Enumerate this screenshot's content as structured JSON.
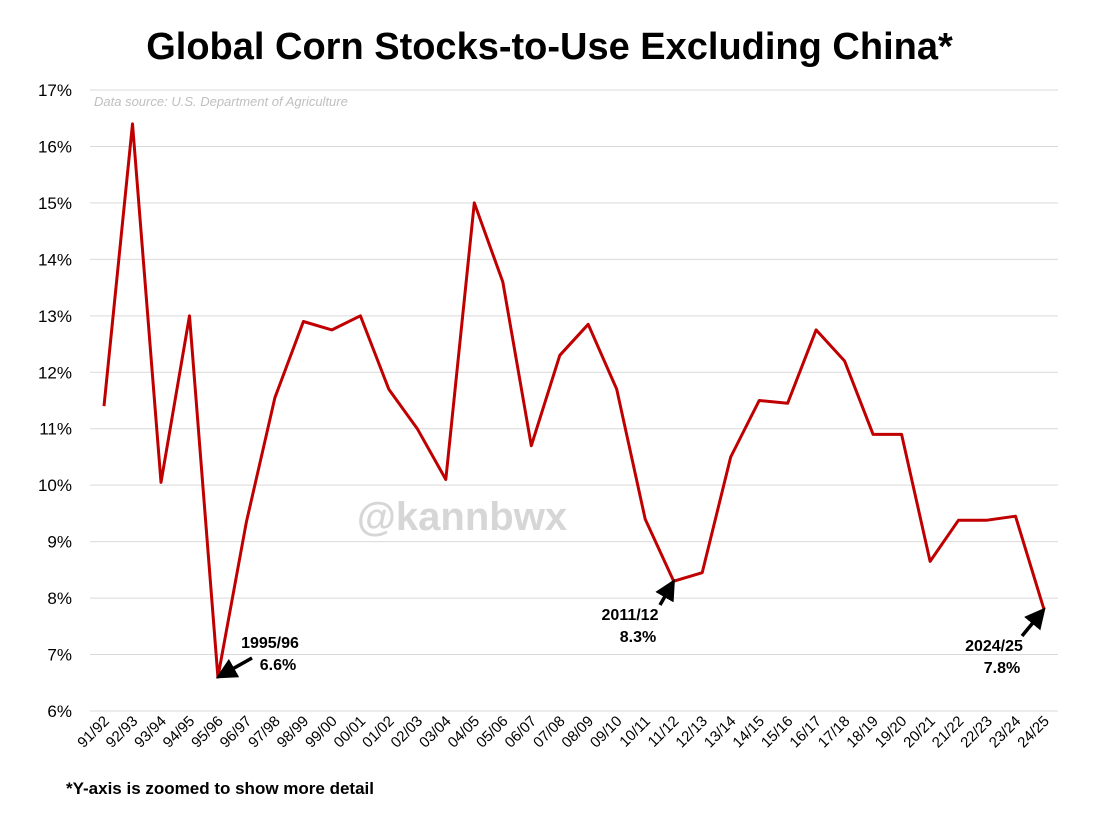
{
  "title": "Global Corn Stocks-to-Use Excluding China*",
  "footnote": "*Y-axis is zoomed to show more detail",
  "source": "Data source: U.S. Department of Agriculture",
  "watermark": "@kannbwx",
  "colors": {
    "line": "#c00000",
    "grid": "#d9d9d9",
    "text": "#000000"
  },
  "chart_data": {
    "type": "line",
    "title": "Global Corn Stocks-to-Use Excluding China*",
    "xlabel": "",
    "ylabel": "",
    "ylim": [
      6,
      17
    ],
    "y_ticks": [
      6,
      7,
      8,
      9,
      10,
      11,
      12,
      13,
      14,
      15,
      16,
      17
    ],
    "y_tick_labels": [
      "6%",
      "7%",
      "8%",
      "9%",
      "10%",
      "11%",
      "12%",
      "13%",
      "14%",
      "15%",
      "16%",
      "17%"
    ],
    "grid": true,
    "categories": [
      "91/92",
      "92/93",
      "93/94",
      "94/95",
      "95/96",
      "96/97",
      "97/98",
      "98/99",
      "99/00",
      "00/01",
      "01/02",
      "02/03",
      "03/04",
      "04/05",
      "05/06",
      "06/07",
      "07/08",
      "08/09",
      "09/10",
      "10/11",
      "11/12",
      "12/13",
      "13/14",
      "14/15",
      "15/16",
      "16/17",
      "17/18",
      "18/19",
      "19/20",
      "20/21",
      "21/22",
      "22/23",
      "23/24",
      "24/25"
    ],
    "series": [
      {
        "values": [
          11.4,
          16.4,
          10.05,
          13.0,
          6.6,
          9.35,
          11.55,
          12.9,
          12.75,
          13.0,
          11.7,
          11.0,
          10.1,
          15.0,
          13.6,
          10.7,
          12.3,
          12.85,
          11.7,
          9.4,
          8.3,
          8.45,
          10.5,
          11.5,
          11.45,
          12.75,
          12.2,
          10.9,
          10.9,
          8.65,
          9.38,
          9.38,
          9.45,
          7.8
        ]
      }
    ],
    "annotations": [
      {
        "label": "1995/96",
        "value_text": "6.6%",
        "category": "95/96"
      },
      {
        "label": "2011/12",
        "value_text": "8.3%",
        "category": "11/12"
      },
      {
        "label": "2024/25",
        "value_text": "7.8%",
        "category": "24/25"
      }
    ]
  }
}
